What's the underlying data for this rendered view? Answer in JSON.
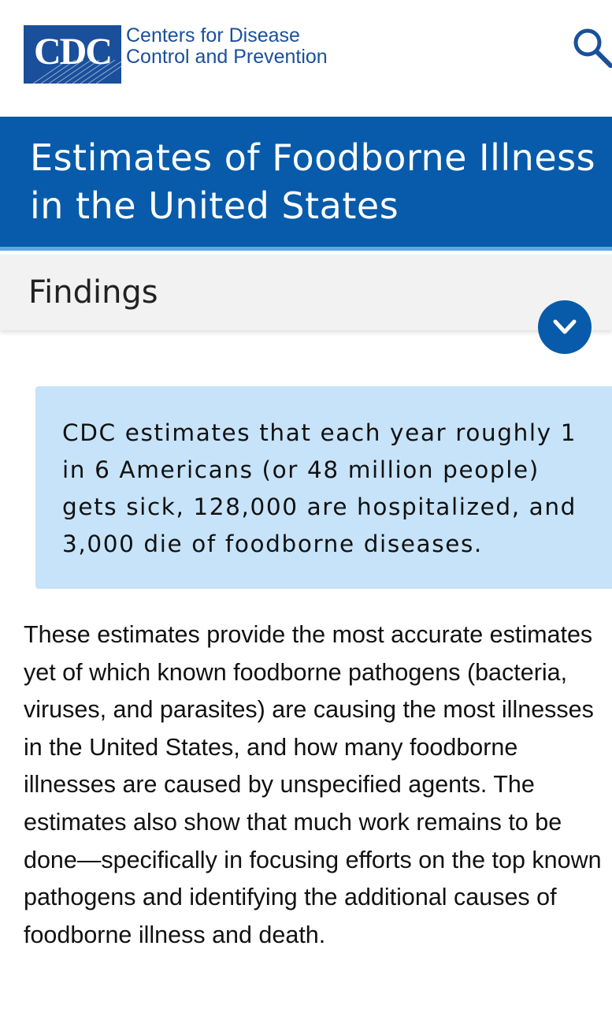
{
  "header": {
    "logo_abbrev": "CDC",
    "org_name_line1": "Centers for Disease",
    "org_name_line2": "Control and Prevention",
    "search_icon": "search-icon",
    "brand_color": "#1a4f9c"
  },
  "title_band": {
    "title": "Estimates of Foodborne Illness in the United States",
    "background": "#075baa"
  },
  "section": {
    "title": "Findings",
    "toggle_icon": "chevron-down-icon"
  },
  "callout": {
    "text": "CDC estimates that each year roughly 1 in 6 Americans (or 48 million people) gets sick, 128,000 are hospitalized, and 3,000 die of foodborne diseases.",
    "background": "#c6e3f9"
  },
  "body": {
    "paragraph": "These estimates provide the most accurate estimates yet of which known foodborne pathogens (bacteria, viruses, and parasites) are causing the most illnesses in the United States, and how many foodborne illnesses are caused by unspecified agents. The estimates also show that much work remains to be done—specifically in focusing efforts on the top known pathogens and identifying the additional causes of foodborne illness and death."
  }
}
